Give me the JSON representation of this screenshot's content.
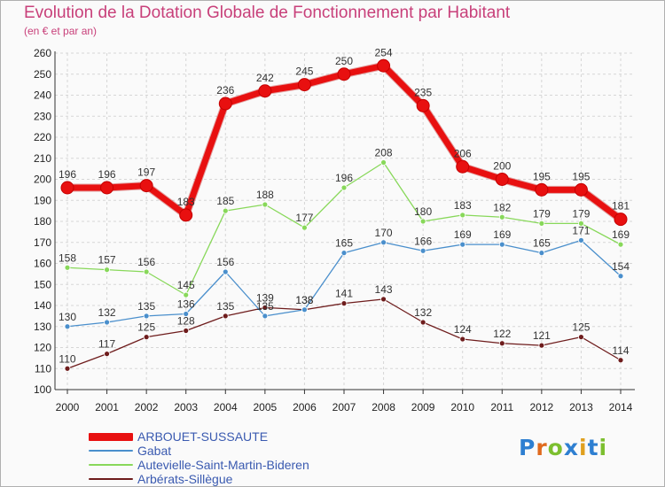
{
  "title": "Evolution de la Dotation Globale de Fonctionnement par Habitant",
  "subtitle": "(en € et par an)",
  "logo": {
    "p1": "P",
    "p2": "r",
    "p3": "o",
    "p4": "x",
    "p5": "i",
    "p6": "t",
    "p7": "i"
  },
  "chart_data": {
    "type": "line",
    "x": [
      "2000",
      "2001",
      "2002",
      "2003",
      "2004",
      "2005",
      "2006",
      "2007",
      "2008",
      "2009",
      "2010",
      "2011",
      "2012",
      "2013",
      "2014"
    ],
    "ylim": [
      100,
      260
    ],
    "yticks": [
      "100",
      "110",
      "120",
      "130",
      "140",
      "150",
      "160",
      "170",
      "180",
      "190",
      "200",
      "210",
      "220",
      "230",
      "240",
      "250",
      "260"
    ],
    "grid": true,
    "legend_position": "bottom-left",
    "series": [
      {
        "name": "ARBOUET-SUSSAUTE",
        "color": "#e81010",
        "values": [
          196,
          196,
          197,
          183,
          236,
          242,
          245,
          250,
          254,
          235,
          206,
          200,
          195,
          195,
          181
        ]
      },
      {
        "name": "Gabat",
        "color": "#4a8fcc",
        "values": [
          130,
          132,
          135,
          136,
          156,
          135,
          138,
          165,
          170,
          166,
          169,
          169,
          165,
          171,
          154
        ]
      },
      {
        "name": "Autevielle-Saint-Martin-Bideren",
        "color": "#88d85a",
        "values": [
          158,
          157,
          156,
          145,
          185,
          188,
          177,
          196,
          208,
          180,
          183,
          182,
          179,
          179,
          169
        ]
      },
      {
        "name": "Arbérats-Sillègue",
        "color": "#6e1c1c",
        "values": [
          110,
          117,
          125,
          128,
          135,
          139,
          138,
          141,
          143,
          132,
          124,
          122,
          121,
          125,
          114
        ]
      }
    ]
  }
}
